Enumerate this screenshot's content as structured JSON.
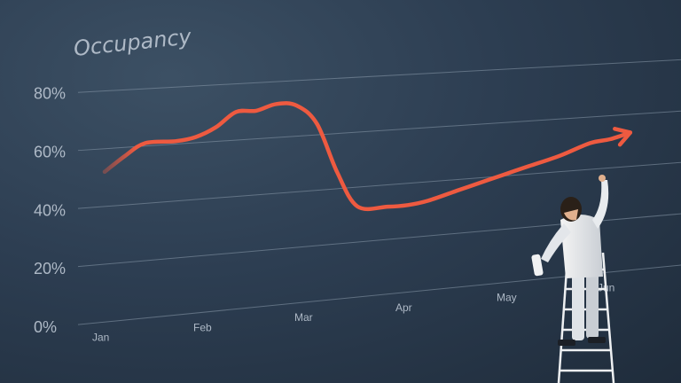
{
  "chart_data": {
    "type": "line",
    "title": "Occupancy",
    "xlabel": "",
    "ylabel": "",
    "categories": [
      "Jan",
      "Feb",
      "Mar",
      "Apr",
      "May",
      "Jun"
    ],
    "y_ticks": [
      "0%",
      "20%",
      "40%",
      "60%",
      "80%"
    ],
    "ylim": [
      0,
      80
    ],
    "grid": true,
    "series": [
      {
        "name": "",
        "x": [
          0.0,
          0.2,
          0.4,
          0.7,
          0.9,
          1.1,
          1.3,
          1.5,
          1.7,
          1.9,
          2.1,
          2.3,
          2.5,
          2.8,
          3.0,
          3.2,
          3.5,
          3.8,
          4.0,
          4.2,
          4.5,
          4.8,
          5.0,
          5.2
        ],
        "values": [
          52,
          57,
          61,
          61,
          62,
          65,
          70,
          70,
          72,
          71,
          64,
          46,
          33,
          32,
          32,
          33,
          36,
          39,
          41,
          43,
          46,
          50,
          51,
          53
        ],
        "color": "#ee5a40"
      }
    ],
    "annotations": [
      "trend-arrow",
      "person-on-ladder-painting"
    ]
  },
  "colors": {
    "background": "#2d3e52",
    "grid": "#8b9aab",
    "line": "#ee5a40",
    "text": "#aeb9c6"
  }
}
